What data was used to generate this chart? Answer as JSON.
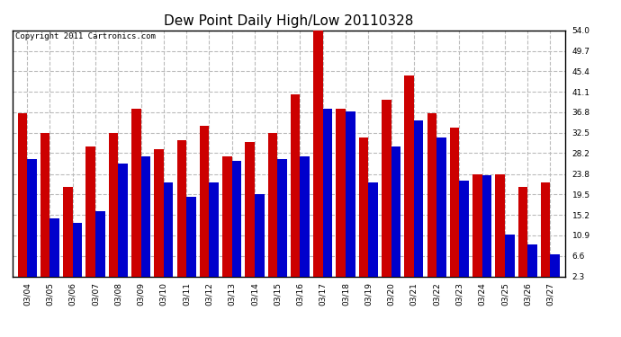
{
  "title": "Dew Point Daily High/Low 20110328",
  "copyright": "Copyright 2011 Cartronics.com",
  "dates": [
    "03/04",
    "03/05",
    "03/06",
    "03/07",
    "03/08",
    "03/09",
    "03/10",
    "03/11",
    "03/12",
    "03/13",
    "03/14",
    "03/15",
    "03/16",
    "03/17",
    "03/18",
    "03/19",
    "03/20",
    "03/21",
    "03/22",
    "03/23",
    "03/24",
    "03/25",
    "03/26",
    "03/27"
  ],
  "highs": [
    36.5,
    32.5,
    21.0,
    29.5,
    32.5,
    37.5,
    29.0,
    31.0,
    34.0,
    27.5,
    30.5,
    32.5,
    40.5,
    54.0,
    37.5,
    31.5,
    39.5,
    44.5,
    36.5,
    33.5,
    23.8,
    23.8,
    21.0,
    22.0
  ],
  "lows": [
    27.0,
    14.5,
    13.5,
    16.0,
    26.0,
    27.5,
    22.0,
    19.0,
    22.0,
    26.5,
    19.5,
    27.0,
    27.5,
    37.5,
    37.0,
    22.0,
    29.5,
    35.0,
    31.5,
    22.5,
    23.5,
    11.0,
    9.0,
    7.0
  ],
  "high_color": "#cc0000",
  "low_color": "#0000cc",
  "background_color": "#ffffff",
  "plot_bg_color": "#ffffff",
  "grid_color": "#bbbbbb",
  "ytick_labels": [
    "2.3",
    "6.6",
    "10.9",
    "15.2",
    "19.5",
    "23.8",
    "28.2",
    "32.5",
    "36.8",
    "41.1",
    "45.4",
    "49.7",
    "54.0"
  ],
  "ytick_values": [
    2.3,
    6.6,
    10.9,
    15.2,
    19.5,
    23.8,
    28.2,
    32.5,
    36.8,
    41.1,
    45.4,
    49.7,
    54.0
  ],
  "ylim": [
    2.3,
    54.0
  ],
  "bar_width": 0.42,
  "title_fontsize": 11,
  "tick_fontsize": 6.5,
  "copyright_fontsize": 6.5
}
